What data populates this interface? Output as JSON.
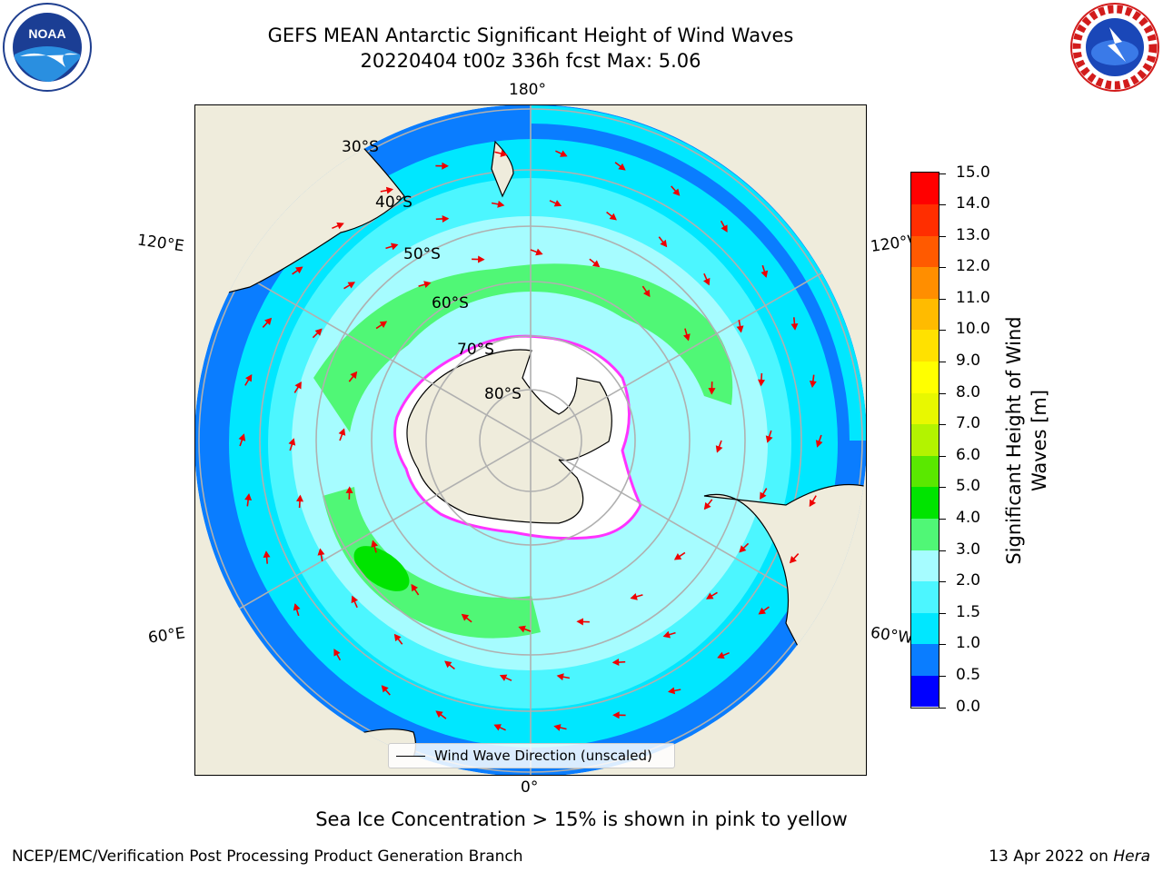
{
  "header": {
    "title_line1": "GEFS MEAN Antarctic Significant Height of Wind Waves",
    "title_line2": "20220404 t00z 336h fcst   Max: 5.06"
  },
  "logos": {
    "left": "noaa-logo",
    "right": "nws-logo"
  },
  "map": {
    "projection": "south-polar-stereographic",
    "lon_labels": {
      "top": "180°",
      "bottom": "0°",
      "upper_left": "120°E",
      "lower_left": "60°E",
      "upper_right": "120°W",
      "lower_right": "60°W"
    },
    "lat_labels": [
      "30°S",
      "40°S",
      "50°S",
      "60°S",
      "70°S",
      "80°S"
    ],
    "legend_label": "Wind Wave Direction (unscaled)",
    "colors": {
      "land": "#efecdc",
      "ice_free_shelf": "#ffffff",
      "arrow": "#ee0000",
      "sea_ice_edge": "#ff33ff",
      "grid": "#b0b0b0"
    }
  },
  "colorbar": {
    "title_line1": "Significant Height of Wind",
    "title_line2": "Waves [m]",
    "tick_labels": [
      "0.0",
      "0.5",
      "1.0",
      "1.5",
      "2.0",
      "3.0",
      "4.0",
      "5.0",
      "6.0",
      "7.0",
      "8.0",
      "9.0",
      "10.0",
      "11.0",
      "12.0",
      "13.0",
      "14.0",
      "15.0"
    ],
    "colors": [
      "#0000ff",
      "#0a7dff",
      "#00e7ff",
      "#4cf6ff",
      "#a6fcff",
      "#50f776",
      "#00e400",
      "#5ae800",
      "#b3f300",
      "#e8f800",
      "#ffff00",
      "#ffe100",
      "#ffbb00",
      "#ff8e00",
      "#ff5a00",
      "#ff2e00",
      "#ff0000"
    ]
  },
  "chart_data": {
    "type": "heatmap",
    "title": "GEFS MEAN Antarctic Significant Height of Wind Waves",
    "subtitle": "20220404 t00z 336h fcst   Max: 5.06",
    "variable": "Significant Height of Wind Waves [m]",
    "max_value": 5.06,
    "color_levels": [
      0.0,
      0.5,
      1.0,
      1.5,
      2.0,
      3.0,
      4.0,
      5.0,
      6.0,
      7.0,
      8.0,
      9.0,
      10.0,
      11.0,
      12.0,
      13.0,
      14.0,
      15.0
    ],
    "vmin": 0.0,
    "vmax": 15.0
  },
  "footer": {
    "note": "Sea Ice Concentration > 15% is shown in pink to yellow",
    "left": "NCEP/EMC/Verification Post Processing Product Generation Branch",
    "date": "13 Apr 2022 on ",
    "machine": "Hera"
  }
}
